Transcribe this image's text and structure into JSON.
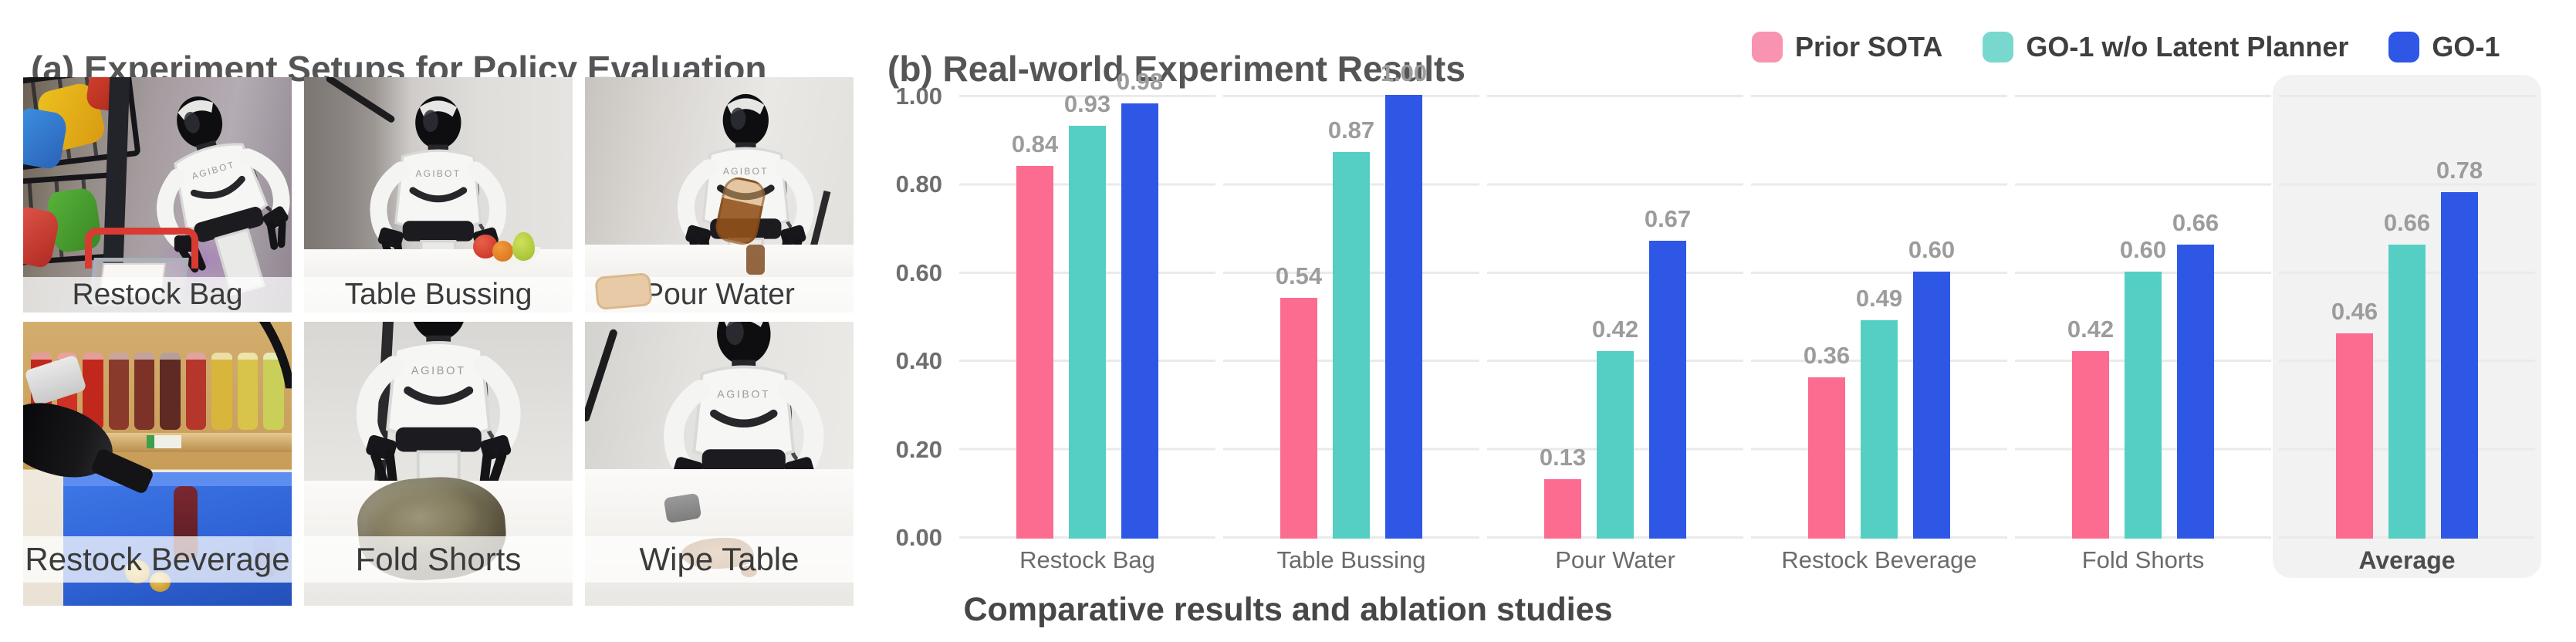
{
  "panel_a": {
    "title": "(a) Experiment Setups for Policy Evaluation",
    "photos": [
      {
        "label": "Restock Bag"
      },
      {
        "label": "Table Bussing"
      },
      {
        "label": "Pour Water"
      },
      {
        "label": "Restock Beverage"
      },
      {
        "label": "Fold Shorts"
      },
      {
        "label": "Wipe Table"
      }
    ]
  },
  "panel_b": {
    "title": "(b) Real-world Experiment Results",
    "caption": "Comparative results and ablation studies"
  },
  "chart_data": {
    "type": "bar",
    "title": "(b) Real-world Experiment Results",
    "categories": [
      "Restock Bag",
      "Table Bussing",
      "Pour Water",
      "Restock Beverage",
      "Fold Shorts",
      "Average"
    ],
    "series": [
      {
        "name": "Prior SOTA",
        "color": "#FB6C90",
        "legend_color": "#F893B1",
        "values": [
          0.84,
          0.54,
          0.13,
          0.36,
          0.42,
          0.46
        ]
      },
      {
        "name": "GO-1 w/o Latent Planner",
        "color": "#55CFC4",
        "legend_color": "#79D8CE",
        "values": [
          0.93,
          0.87,
          0.42,
          0.49,
          0.6,
          0.66
        ]
      },
      {
        "name": "GO-1",
        "color": "#2F57E6",
        "legend_color": "#2F57E6",
        "values": [
          0.98,
          1.0,
          0.67,
          0.6,
          0.66,
          0.78
        ]
      }
    ],
    "ylim": [
      0,
      1
    ],
    "yticks": [
      "1.00",
      "0.80",
      "0.60",
      "0.40",
      "0.20",
      "0.00"
    ],
    "value_labels_decimals": 2,
    "grid": "horizontal",
    "grid_color": "#EAEAEA",
    "legend_position": "top-right",
    "highlight_category": "Average",
    "highlight_color": "#F2F2F2",
    "xlabel": "",
    "ylabel": ""
  }
}
